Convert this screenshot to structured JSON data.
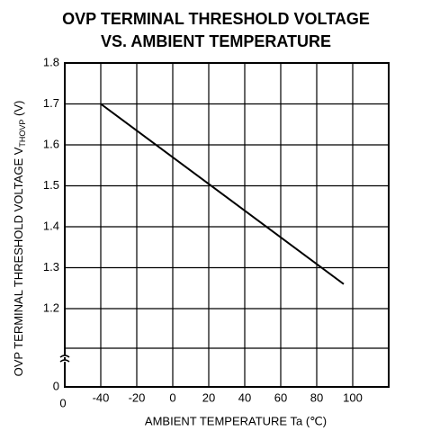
{
  "chart_data": {
    "type": "line",
    "title": [
      "OVP TERMINAL THRESHOLD VOLTAGE",
      "VS. AMBIENT TEMPERATURE"
    ],
    "xlabel": "AMBIENT TEMPERATURE Ta (℃)",
    "ylabel": [
      "OVP TERMINAL THRESHOLD VOLTAGE V",
      "THOVP",
      " (V)"
    ],
    "annotations": [
      "0"
    ],
    "x": [
      -40,
      95
    ],
    "series": [
      {
        "color": "#000000",
        "values": [
          1.7,
          1.26
        ]
      }
    ],
    "xlim": [
      -60,
      120
    ],
    "xticks": [
      -40,
      -20,
      0,
      20,
      40,
      60,
      80,
      100
    ],
    "ylim": [
      1.2,
      1.8
    ],
    "axis_break": true,
    "yticks": [
      0,
      1.2,
      1.3,
      1.4,
      1.5,
      1.6,
      1.7,
      1.8
    ],
    "grid": true
  }
}
